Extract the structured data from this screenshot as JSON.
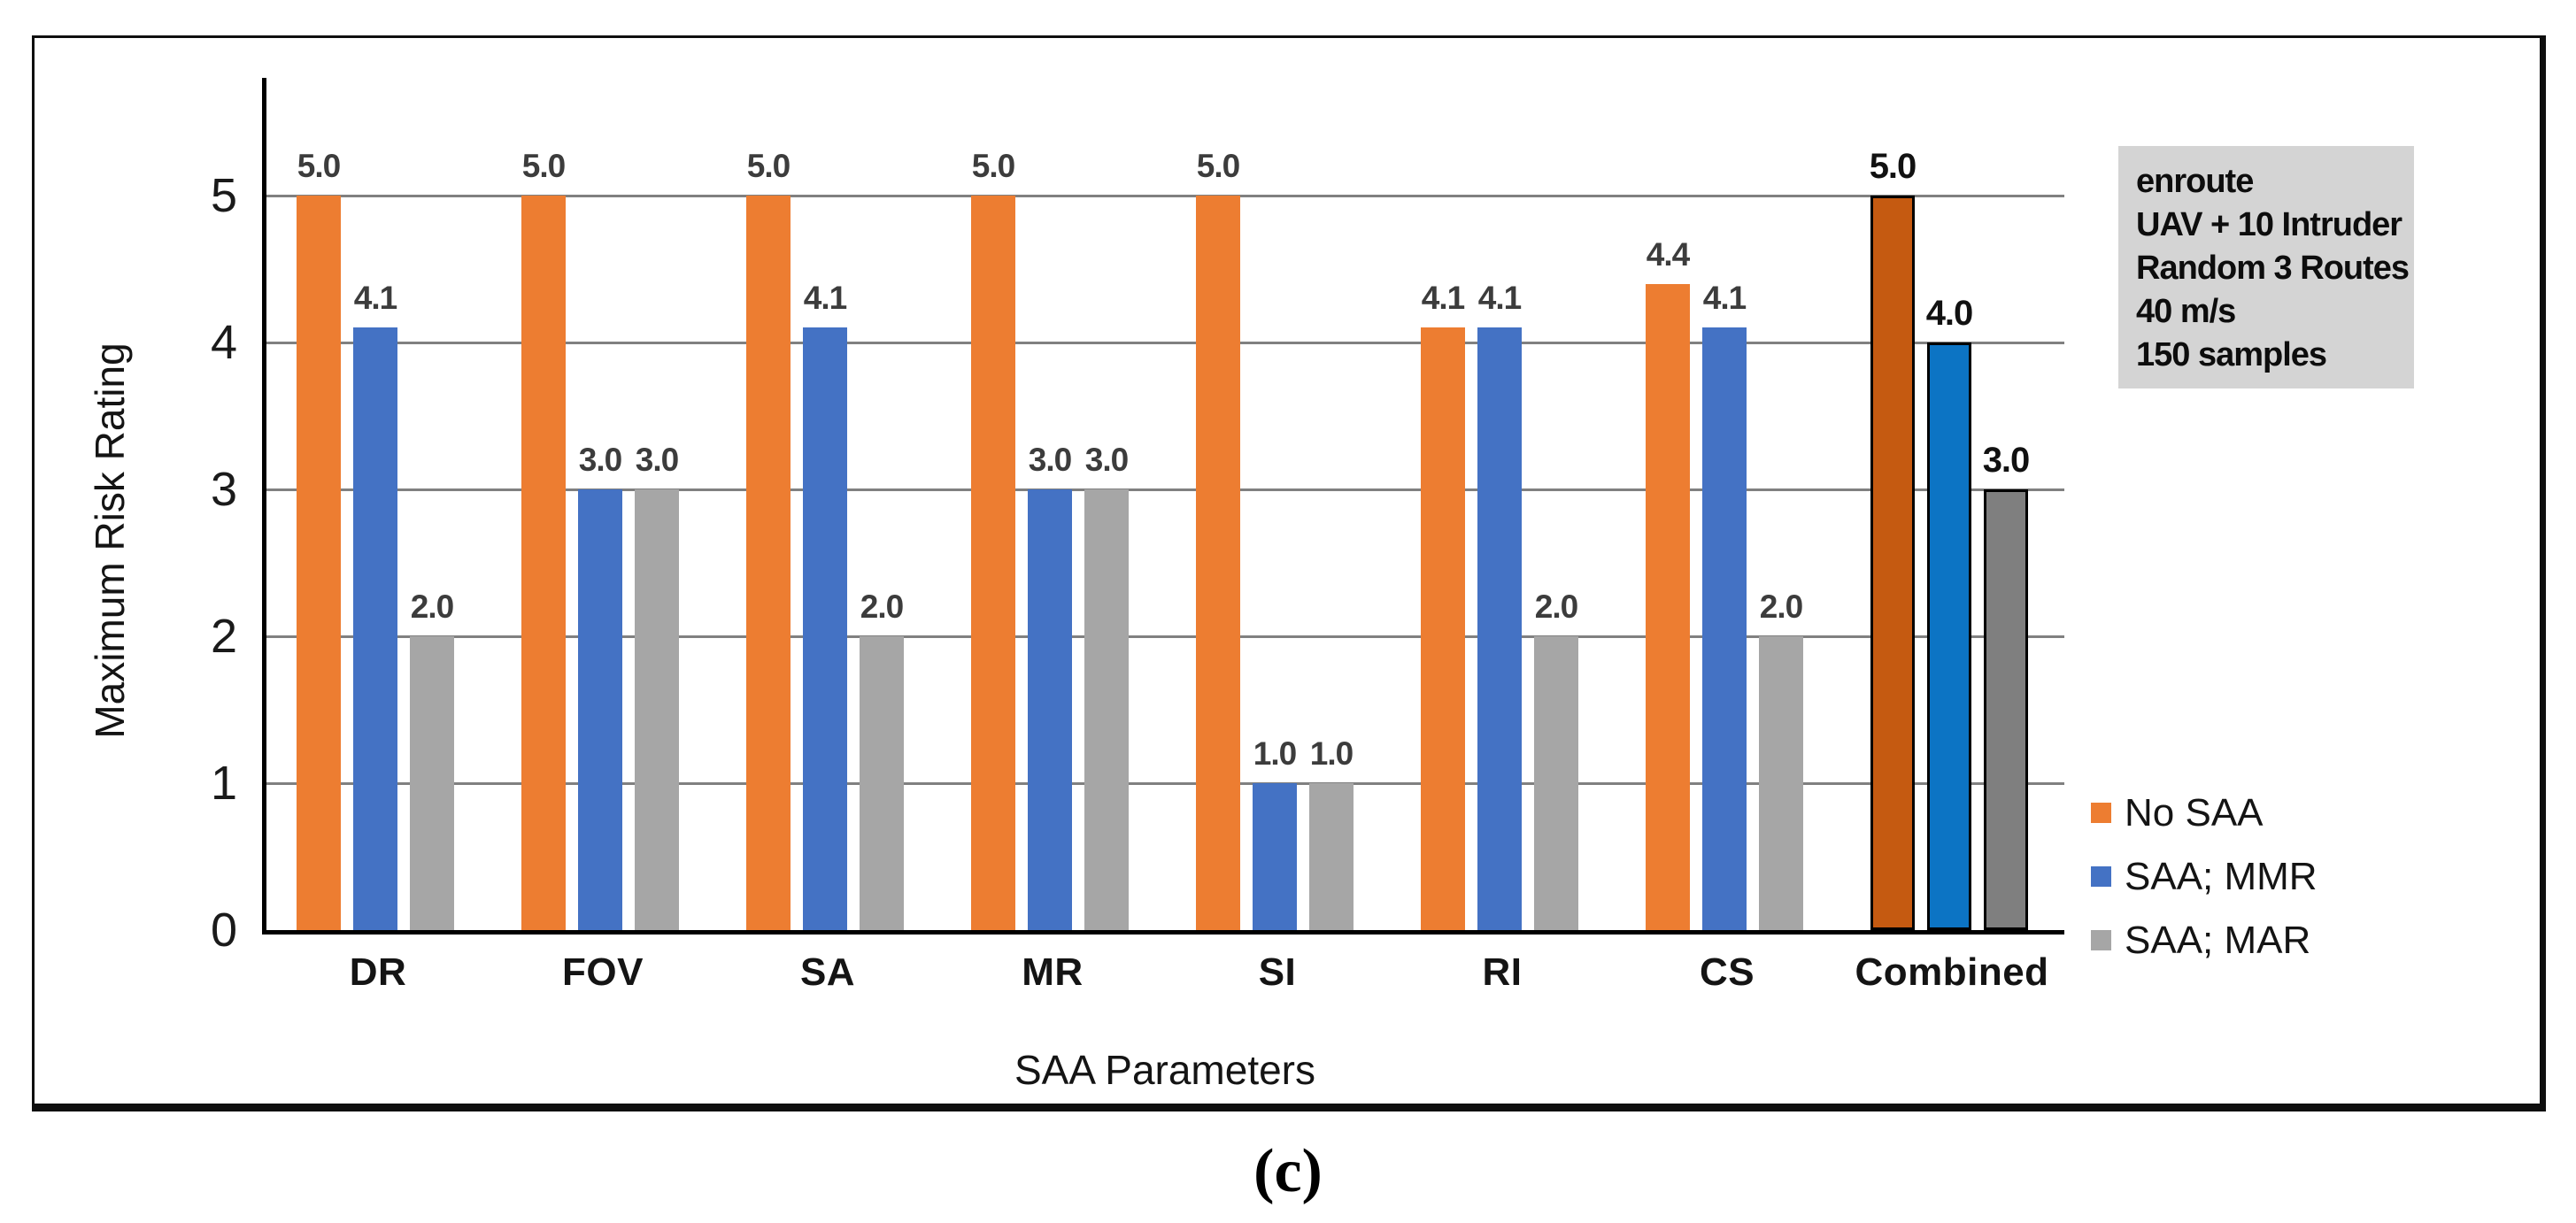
{
  "figure": {
    "caption": "(c)"
  },
  "chart_data": {
    "type": "bar",
    "title": "",
    "xlabel": "SAA Parameters",
    "ylabel": "Maximum Risk Rating",
    "ylim": [
      0,
      5
    ],
    "yticks": [
      0,
      1,
      2,
      3,
      4,
      5
    ],
    "grid": "horizontal",
    "legend_position": "right",
    "categories": [
      "DR",
      "FOV",
      "SA",
      "MR",
      "SI",
      "RI",
      "CS",
      "Combined"
    ],
    "series": [
      {
        "name": "No SAA",
        "color": "#ED7D31",
        "values": [
          5.0,
          5.0,
          5.0,
          5.0,
          5.0,
          4.1,
          4.4,
          5.0
        ]
      },
      {
        "name": "SAA; MMR",
        "color": "#4472C4",
        "values": [
          4.1,
          3.0,
          4.1,
          3.0,
          1.0,
          4.1,
          4.1,
          4.0
        ]
      },
      {
        "name": "SAA; MAR",
        "color": "#A6A6A6",
        "values": [
          2.0,
          3.0,
          2.0,
          3.0,
          1.0,
          2.0,
          2.0,
          3.0
        ]
      }
    ],
    "data_label_format": "one-decimal",
    "highlight": {
      "category": "Combined",
      "colors": [
        "#C55A11",
        "#0C74C4",
        "#7F7F7F"
      ],
      "border_color": "#000000"
    },
    "annotation": {
      "lines": [
        "enroute",
        "UAV + 10 Intruder",
        "Random 3 Routes",
        "40 m/s",
        "150 samples"
      ],
      "background": "#D4D4D4"
    },
    "colors": {
      "axis": "#000000",
      "gridline": "#808080",
      "data_label": "#3C3C3C"
    }
  }
}
